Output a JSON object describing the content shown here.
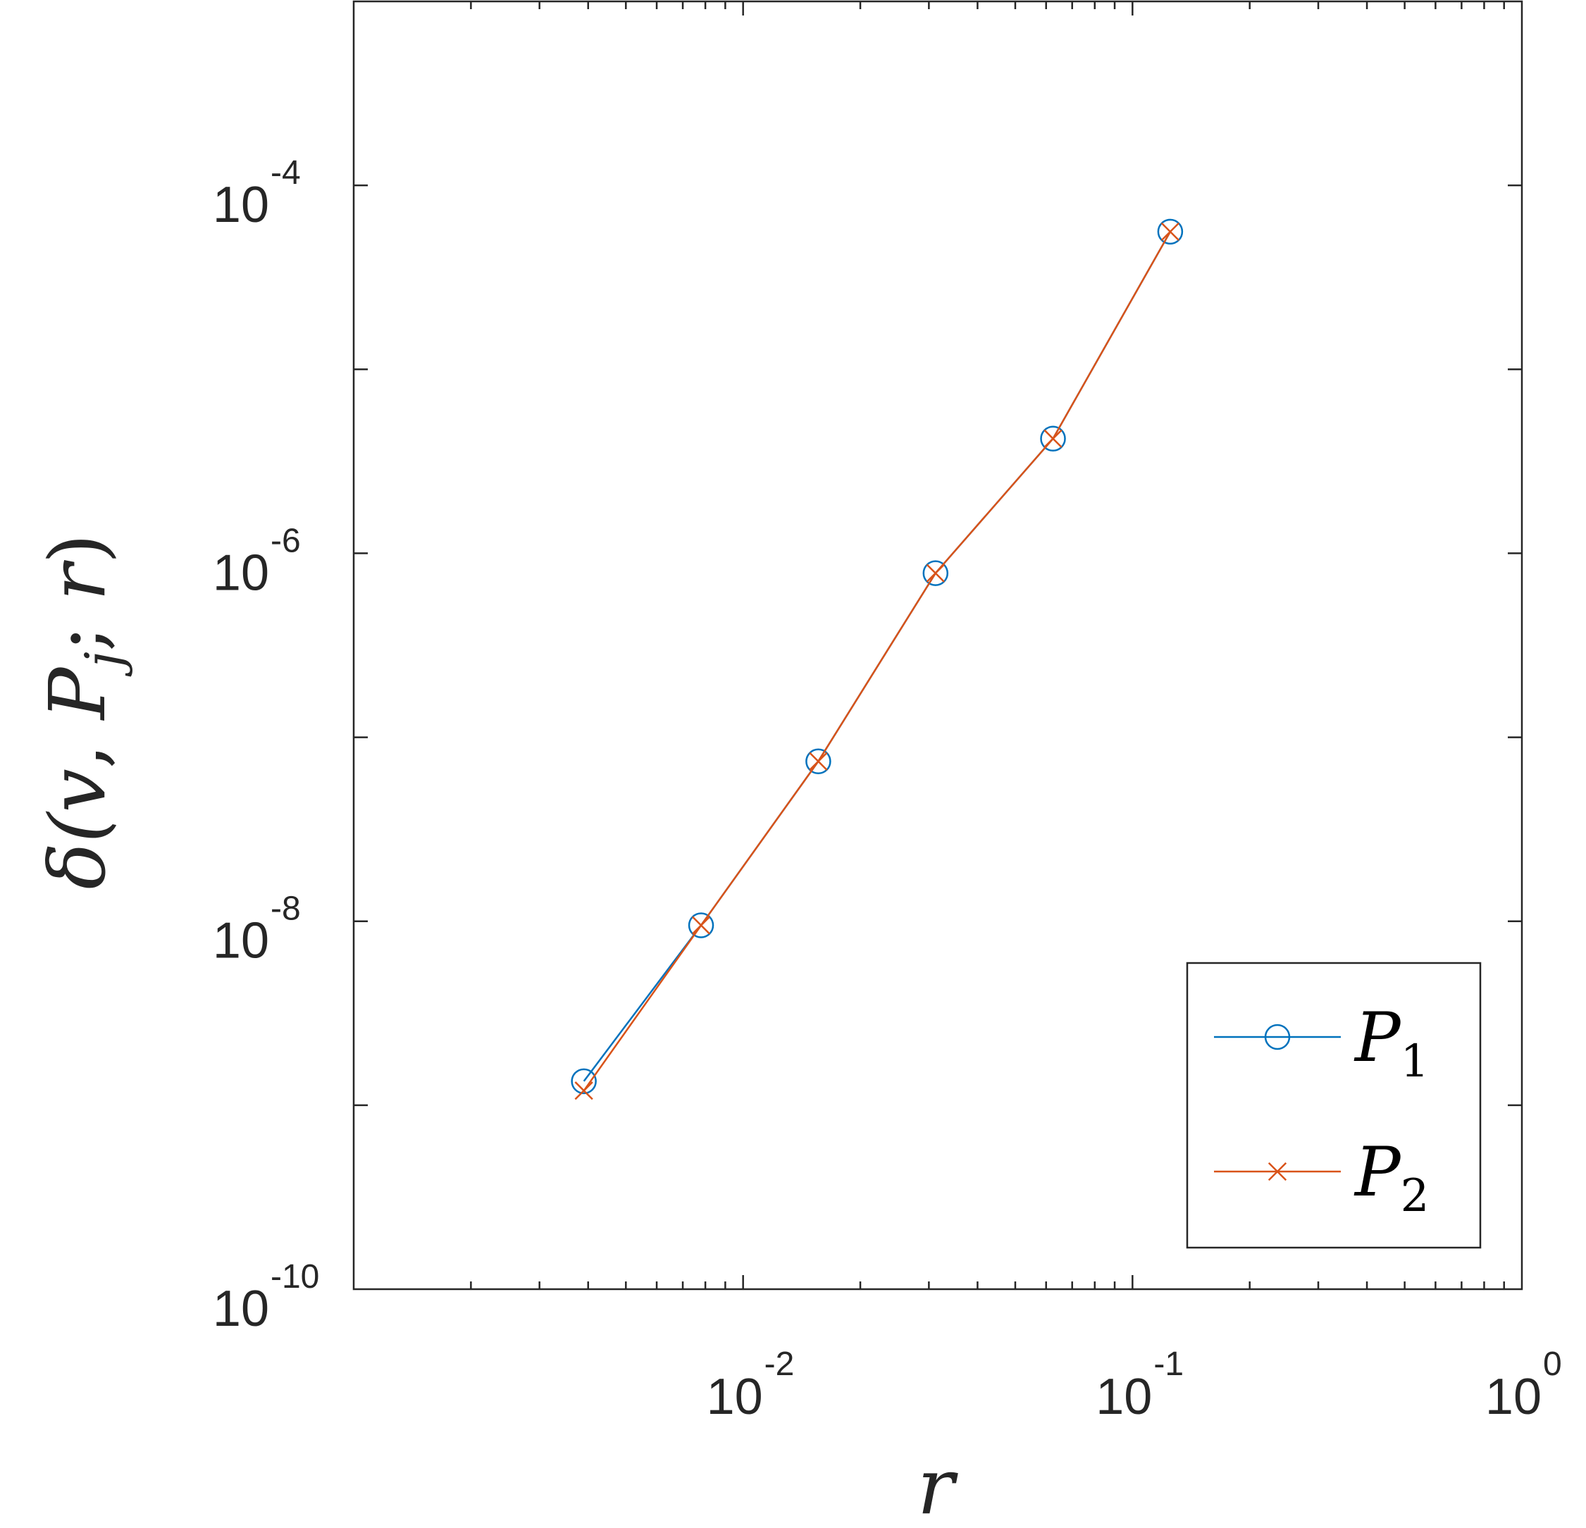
{
  "chart_data": {
    "type": "line",
    "title": "",
    "xlabel": "r",
    "ylabel": "δ(v, P_j; r)",
    "xscale": "log",
    "yscale": "log",
    "xlim": [
      0.001,
      1
    ],
    "ylim": [
      1e-10,
      0.001
    ],
    "xticks": [
      {
        "value": 0.01,
        "base": "10",
        "exp": "-2"
      },
      {
        "value": 0.1,
        "base": "10",
        "exp": "-1"
      },
      {
        "value": 1,
        "base": "10",
        "exp": "0"
      }
    ],
    "yticks": [
      {
        "value": 1e-10,
        "base": "10",
        "exp": "-10"
      },
      {
        "value": 1e-08,
        "base": "10",
        "exp": "-8"
      },
      {
        "value": 1e-06,
        "base": "10",
        "exp": "-6"
      },
      {
        "value": 0.0001,
        "base": "10",
        "exp": "-4"
      }
    ],
    "grid": false,
    "legend_position": "bottom-right",
    "series": [
      {
        "name": "P1",
        "name_base": "P",
        "name_sub": "1",
        "color": "#0072BD",
        "marker": "circle",
        "x": [
          0.0039,
          0.0078,
          0.0156,
          0.0312,
          0.0625,
          0.125
        ],
        "y": [
          1.35e-09,
          9.5e-09,
          7.4e-08,
          7.8e-07,
          4.2e-06,
          5.6e-05
        ]
      },
      {
        "name": "P2",
        "name_base": "P",
        "name_sub": "2",
        "color": "#D95319",
        "marker": "x",
        "x": [
          0.0039,
          0.0078,
          0.0156,
          0.0312,
          0.0625,
          0.125
        ],
        "y": [
          1.2e-09,
          9.5e-09,
          7.4e-08,
          7.8e-07,
          4.2e-06,
          5.6e-05
        ]
      }
    ]
  }
}
